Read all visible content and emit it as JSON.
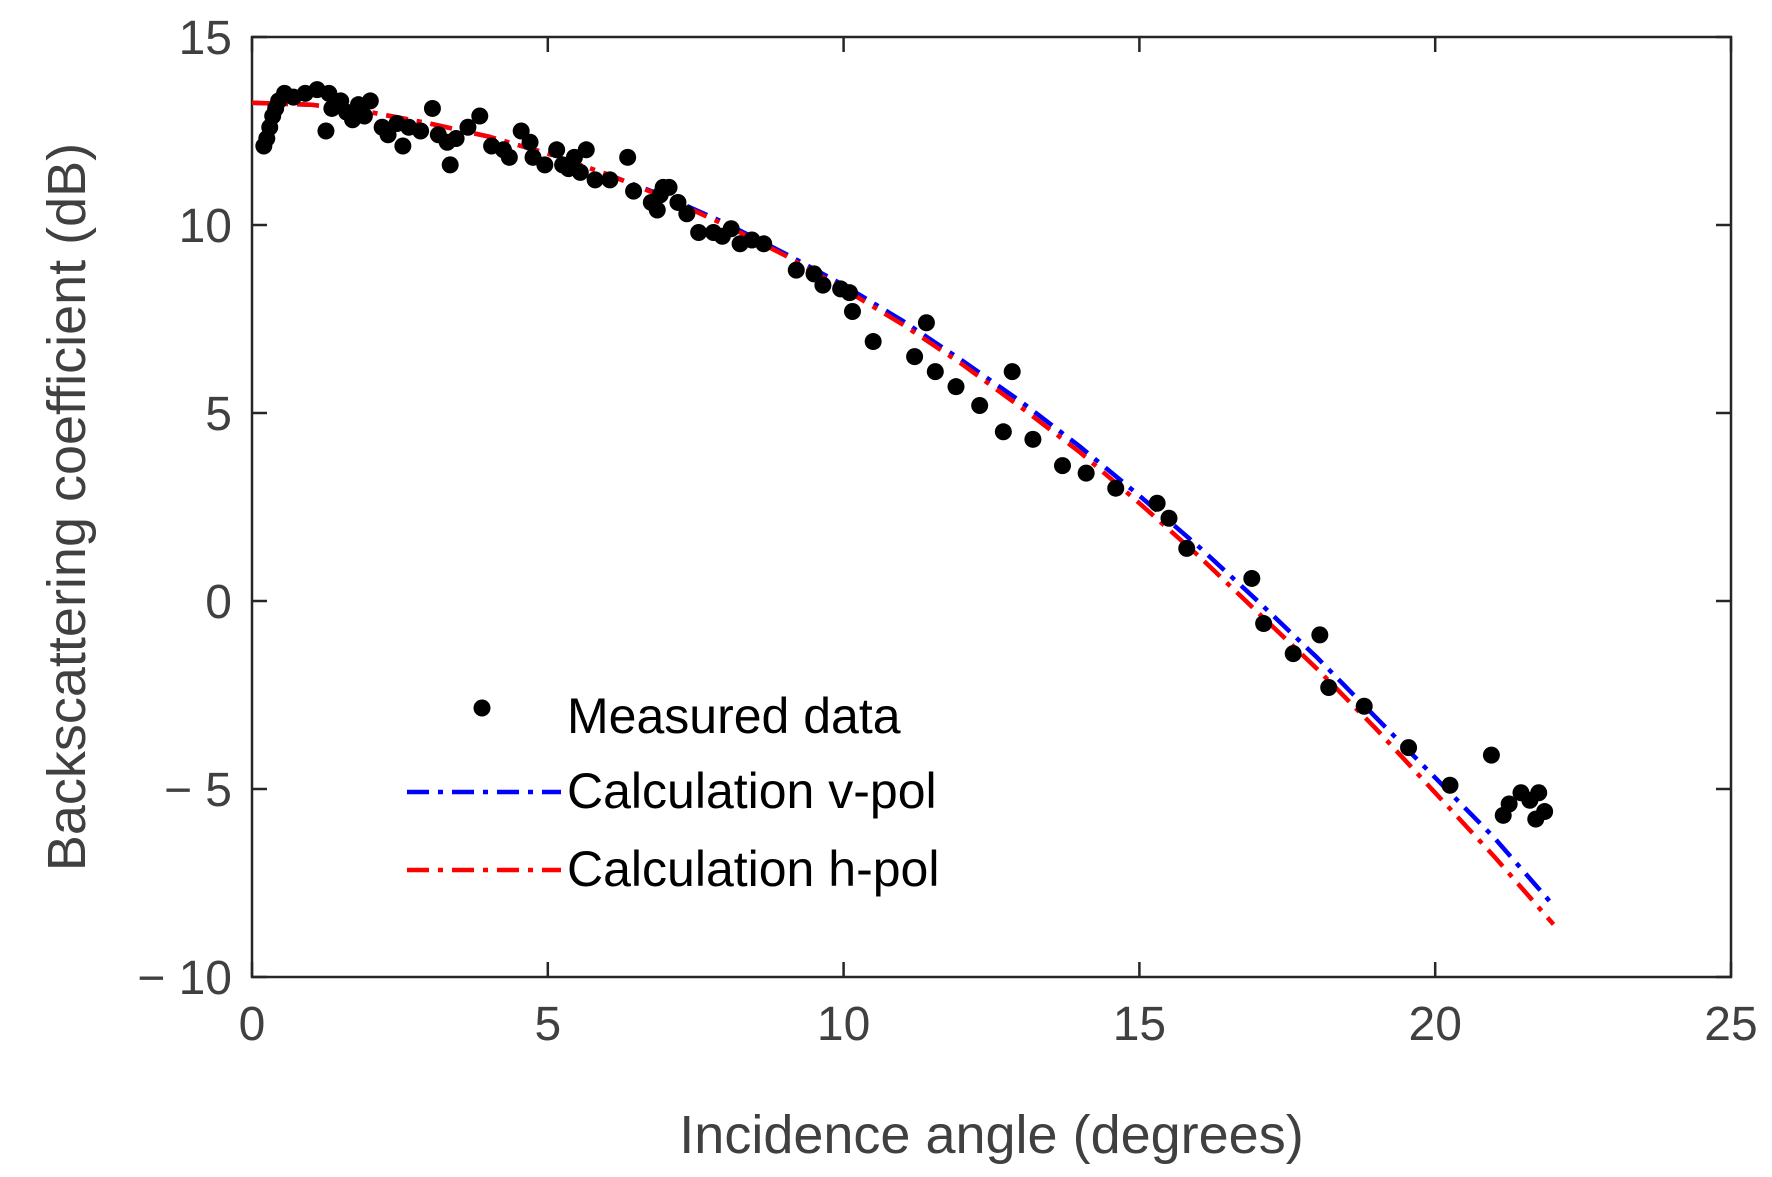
{
  "chart_data": {
    "type": "scatter",
    "title": "",
    "xlabel": "Incidence angle (degrees)",
    "ylabel": "Backscattering coefficient (dB)",
    "xlim": [
      0,
      25
    ],
    "ylim": [
      -10,
      15
    ],
    "x_ticks": [
      0,
      5,
      10,
      15,
      20,
      25
    ],
    "x_tick_labels": [
      "0",
      "5",
      "10",
      "15",
      "20",
      "25"
    ],
    "y_ticks": [
      -10,
      -5,
      0,
      5,
      10,
      15
    ],
    "y_tick_labels": [
      "− 10",
      "− 5",
      "0",
      "5",
      "10",
      "15"
    ],
    "grid": false,
    "legend_position": "lower-left",
    "series": [
      {
        "name": "Measured data",
        "kind": "scatter",
        "color": "#000000",
        "points": [
          [
            0.2,
            12.1
          ],
          [
            0.25,
            12.3
          ],
          [
            0.3,
            12.6
          ],
          [
            0.35,
            12.9
          ],
          [
            0.4,
            13.1
          ],
          [
            0.45,
            13.3
          ],
          [
            0.55,
            13.5
          ],
          [
            0.7,
            13.4
          ],
          [
            0.9,
            13.5
          ],
          [
            1.1,
            13.6
          ],
          [
            1.3,
            13.5
          ],
          [
            1.35,
            13.1
          ],
          [
            1.25,
            12.5
          ],
          [
            1.5,
            13.3
          ],
          [
            1.6,
            13.0
          ],
          [
            1.7,
            12.8
          ],
          [
            1.8,
            13.2
          ],
          [
            1.9,
            12.9
          ],
          [
            2.0,
            13.3
          ],
          [
            2.2,
            12.6
          ],
          [
            2.3,
            12.4
          ],
          [
            2.45,
            12.7
          ],
          [
            2.55,
            12.1
          ],
          [
            2.65,
            12.6
          ],
          [
            2.85,
            12.5
          ],
          [
            3.05,
            13.1
          ],
          [
            3.15,
            12.4
          ],
          [
            3.3,
            12.2
          ],
          [
            3.35,
            11.6
          ],
          [
            3.45,
            12.3
          ],
          [
            3.65,
            12.6
          ],
          [
            3.85,
            12.9
          ],
          [
            4.05,
            12.1
          ],
          [
            4.25,
            12.0
          ],
          [
            4.35,
            11.8
          ],
          [
            4.55,
            12.5
          ],
          [
            4.7,
            12.2
          ],
          [
            4.75,
            11.8
          ],
          [
            4.95,
            11.6
          ],
          [
            5.15,
            12.0
          ],
          [
            5.25,
            11.6
          ],
          [
            5.35,
            11.5
          ],
          [
            5.45,
            11.8
          ],
          [
            5.55,
            11.4
          ],
          [
            5.65,
            12.0
          ],
          [
            5.8,
            11.2
          ],
          [
            6.05,
            11.2
          ],
          [
            6.35,
            11.8
          ],
          [
            6.45,
            10.9
          ],
          [
            6.75,
            10.6
          ],
          [
            6.85,
            10.4
          ],
          [
            6.9,
            10.8
          ],
          [
            6.95,
            11.0
          ],
          [
            7.05,
            11.0
          ],
          [
            7.2,
            10.6
          ],
          [
            7.35,
            10.3
          ],
          [
            7.55,
            9.8
          ],
          [
            7.8,
            9.8
          ],
          [
            7.95,
            9.7
          ],
          [
            8.1,
            9.9
          ],
          [
            8.25,
            9.5
          ],
          [
            8.45,
            9.6
          ],
          [
            8.65,
            9.5
          ],
          [
            9.2,
            8.8
          ],
          [
            9.5,
            8.7
          ],
          [
            9.65,
            8.4
          ],
          [
            9.95,
            8.3
          ],
          [
            10.1,
            8.2
          ],
          [
            10.15,
            7.7
          ],
          [
            10.5,
            6.9
          ],
          [
            11.2,
            6.5
          ],
          [
            11.4,
            7.4
          ],
          [
            11.55,
            6.1
          ],
          [
            11.9,
            5.7
          ],
          [
            12.3,
            5.2
          ],
          [
            12.7,
            4.5
          ],
          [
            12.85,
            6.1
          ],
          [
            13.2,
            4.3
          ],
          [
            13.7,
            3.6
          ],
          [
            14.1,
            3.4
          ],
          [
            14.6,
            3.0
          ],
          [
            15.3,
            2.6
          ],
          [
            15.5,
            2.2
          ],
          [
            15.8,
            1.4
          ],
          [
            16.9,
            0.6
          ],
          [
            17.1,
            -0.6
          ],
          [
            17.6,
            -1.4
          ],
          [
            18.05,
            -0.9
          ],
          [
            18.2,
            -2.3
          ],
          [
            18.8,
            -2.8
          ],
          [
            19.55,
            -3.9
          ],
          [
            20.25,
            -4.9
          ],
          [
            20.95,
            -4.1
          ],
          [
            21.15,
            -5.7
          ],
          [
            21.25,
            -5.4
          ],
          [
            21.45,
            -5.1
          ],
          [
            21.6,
            -5.3
          ],
          [
            21.7,
            -5.8
          ],
          [
            21.75,
            -5.1
          ],
          [
            21.85,
            -5.6
          ]
        ]
      },
      {
        "name": "Calculation v-pol",
        "kind": "line",
        "color": "#0000ff",
        "points": [
          [
            0,
            13.25
          ],
          [
            1,
            13.2
          ],
          [
            2,
            13.0
          ],
          [
            3,
            12.7
          ],
          [
            4,
            12.35
          ],
          [
            5,
            11.9
          ],
          [
            6,
            11.35
          ],
          [
            7,
            10.75
          ],
          [
            8,
            10.05
          ],
          [
            9,
            9.25
          ],
          [
            10,
            8.4
          ],
          [
            11,
            7.45
          ],
          [
            12,
            6.4
          ],
          [
            13,
            5.3
          ],
          [
            14,
            4.1
          ],
          [
            15,
            2.8
          ],
          [
            16,
            1.45
          ],
          [
            17,
            0.0
          ],
          [
            18,
            -1.5
          ],
          [
            19,
            -3.1
          ],
          [
            20,
            -4.7
          ],
          [
            21,
            -6.3
          ],
          [
            22,
            -8.1
          ]
        ]
      },
      {
        "name": "Calculation h-pol",
        "kind": "line",
        "color": "#ff0000",
        "points": [
          [
            0,
            13.25
          ],
          [
            1,
            13.2
          ],
          [
            2,
            13.0
          ],
          [
            3,
            12.7
          ],
          [
            4,
            12.35
          ],
          [
            5,
            11.9
          ],
          [
            6,
            11.35
          ],
          [
            7,
            10.72
          ],
          [
            8,
            10.0
          ],
          [
            9,
            9.2
          ],
          [
            10,
            8.3
          ],
          [
            11,
            7.35
          ],
          [
            12,
            6.3
          ],
          [
            13,
            5.15
          ],
          [
            14,
            3.95
          ],
          [
            15,
            2.6
          ],
          [
            16,
            1.2
          ],
          [
            17,
            -0.3
          ],
          [
            18,
            -1.8
          ],
          [
            19,
            -3.4
          ],
          [
            20,
            -5.1
          ],
          [
            21,
            -6.8
          ],
          [
            22,
            -8.6
          ]
        ]
      }
    ]
  }
}
